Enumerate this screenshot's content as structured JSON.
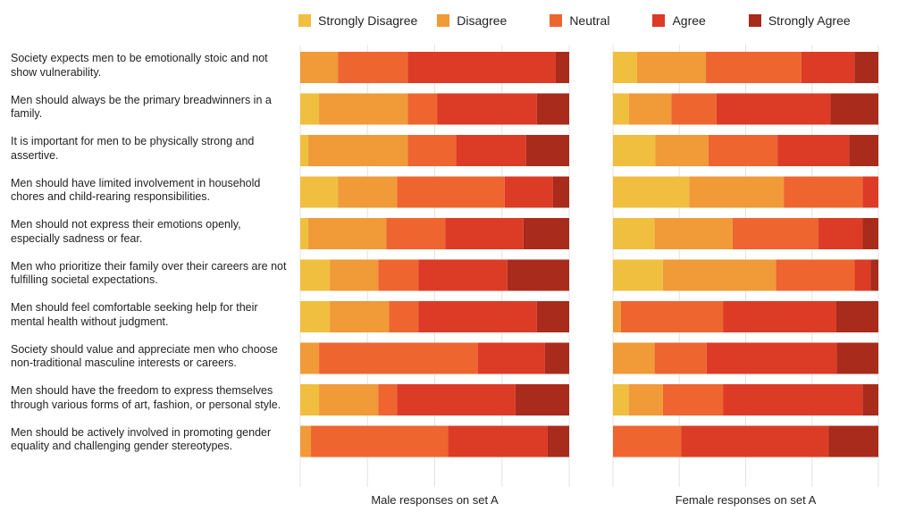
{
  "legend": [
    {
      "label": "Strongly Disagree",
      "color": "#f0bf3f"
    },
    {
      "label": "Disagree",
      "color": "#f09a38"
    },
    {
      "label": "Neutral",
      "color": "#ee6530"
    },
    {
      "label": "Agree",
      "color": "#dc3b26"
    },
    {
      "label": "Strongly Agree",
      "color": "#a82b1b"
    }
  ],
  "questions": [
    "Society expects men to be emotionally stoic and not show vulnerability.",
    "Men should always be the primary breadwinners in a family.",
    "It is important for men to be physically strong and assertive.",
    "Men should have limited involvement in household chores and child-rearing responsibilities.",
    "Men should not express their emotions openly, especially sadness or fear.",
    "Men who prioritize their family over their careers are not fulfilling societal expectations.",
    "Men should feel comfortable seeking help for their mental health without judgment.",
    "Society should value and appreciate men who choose non-traditional masculine interests or careers.",
    "Men should have the freedom to express themselves through various forms of art, fashion, or personal style.",
    "Men should be actively involved in promoting gender equality and challenging gender stereotypes."
  ],
  "chart_data": [
    {
      "type": "bar",
      "orientation": "horizontal",
      "stacked": "100%",
      "xlabel": "Male responses on set A",
      "categories": [
        "Society expects men to be emotionally stoic and not show vulnerability.",
        "Men should always be the primary breadwinners in a family.",
        "It is important for men to be physically strong and assertive.",
        "Men should have limited involvement in household chores and child-rearing responsibilities.",
        "Men should not express their emotions openly, especially sadness or fear.",
        "Men who prioritize their family over their careers are not fulfilling societal expectations.",
        "Men should feel comfortable seeking help for their mental health without judgment.",
        "Society should value and appreciate men who choose non-traditional masculine interests or careers.",
        "Men should have the freedom to express themselves through various forms of art, fashion, or personal style.",
        "Men should be actively involved in promoting gender equality and challenging gender stereotypes."
      ],
      "series": [
        {
          "name": "Strongly Disagree",
          "values": [
            0,
            7,
            3,
            14,
            3,
            11,
            11,
            0,
            7,
            0
          ]
        },
        {
          "name": "Disagree",
          "values": [
            14,
            33,
            37,
            22,
            29,
            18,
            22,
            7,
            22,
            4
          ]
        },
        {
          "name": "Neutral",
          "values": [
            26,
            11,
            18,
            40,
            22,
            15,
            11,
            59,
            7,
            51
          ]
        },
        {
          "name": "Agree",
          "values": [
            55,
            37,
            26,
            18,
            29,
            33,
            44,
            25,
            44,
            37
          ]
        },
        {
          "name": "Strongly Agree",
          "values": [
            5,
            12,
            16,
            6,
            17,
            23,
            12,
            9,
            20,
            8
          ]
        }
      ]
    },
    {
      "type": "bar",
      "orientation": "horizontal",
      "stacked": "100%",
      "xlabel": "Female responses on set A",
      "categories": [
        "Society expects men to be emotionally stoic and not show vulnerability.",
        "Men should always be the primary breadwinners in a family.",
        "It is important for men to be physically strong and assertive.",
        "Men should have limited involvement in household chores and child-rearing responsibilities.",
        "Men should not express their emotions openly, especially sadness or fear.",
        "Men who prioritize their family over their careers are not fulfilling societal expectations.",
        "Men should feel comfortable seeking help for their mental health without judgment.",
        "Society should value and appreciate men who choose non-traditional masculine interests or careers.",
        "Men should have the freedom to express themselves through various forms of art, fashion, or personal style.",
        "Men should be actively involved in promoting gender equality and challenging gender stereotypes."
      ],
      "series": [
        {
          "name": "Strongly Disagree",
          "values": [
            9,
            6,
            16,
            29,
            16,
            19,
            0,
            0,
            6,
            0
          ]
        },
        {
          "name": "Disagree",
          "values": [
            26,
            16,
            20,
            36,
            30,
            43,
            3,
            16,
            13,
            0
          ]
        },
        {
          "name": "Neutral",
          "values": [
            36,
            17,
            26,
            30,
            33,
            30,
            39,
            20,
            23,
            26
          ]
        },
        {
          "name": "Agree",
          "values": [
            20,
            43,
            27,
            6,
            17,
            6,
            43,
            50,
            53,
            56
          ]
        },
        {
          "name": "Strongly Agree",
          "values": [
            9,
            18,
            11,
            0,
            6,
            3,
            16,
            16,
            6,
            19
          ]
        }
      ]
    }
  ]
}
